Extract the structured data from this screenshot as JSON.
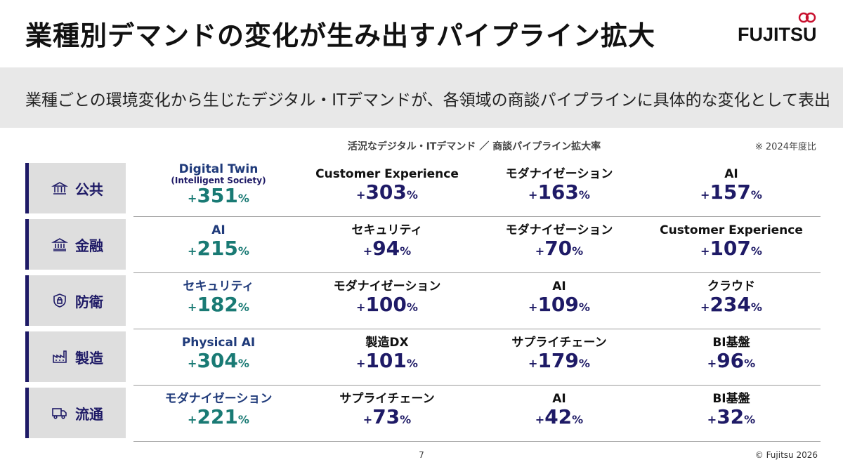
{
  "title": "業種別デマンドの変化が生み出すパイプライン拡大",
  "logo": {
    "text": "FUJITSU"
  },
  "subtitle": "業種ごとの環境変化から生じたデジタル・ITデマンドが、各領域の商談パイプラインに具体的な変化として表出",
  "table_header": "活況なデジタル・ITデマンド ／ 商談パイプライン拡大率",
  "note": "※ 2024年度比",
  "rows": [
    {
      "label": "公共",
      "icon": "government-building-icon",
      "cells": [
        {
          "name": "Digital Twin",
          "sub": "(Intelligent Society)",
          "plus": "+",
          "num": "351",
          "pct": "%"
        },
        {
          "name": "Customer Experience",
          "plus": "+",
          "num": "303",
          "pct": "%"
        },
        {
          "name": "モダナイゼーション",
          "plus": "+",
          "num": "163",
          "pct": "%"
        },
        {
          "name": "AI",
          "plus": "+",
          "num": "157",
          "pct": "%"
        }
      ]
    },
    {
      "label": "金融",
      "icon": "bank-icon",
      "cells": [
        {
          "name": "AI",
          "plus": "+",
          "num": "215",
          "pct": "%"
        },
        {
          "name": "セキュリティ",
          "plus": "+",
          "num": "94",
          "pct": "%"
        },
        {
          "name": "モダナイゼーション",
          "plus": "+",
          "num": "70",
          "pct": "%"
        },
        {
          "name": "Customer Experience",
          "plus": "+",
          "num": "107",
          "pct": "%"
        }
      ]
    },
    {
      "label": "防衛",
      "icon": "shield-lock-icon",
      "cells": [
        {
          "name": "セキュリティ",
          "plus": "+",
          "num": "182",
          "pct": "%"
        },
        {
          "name": "モダナイゼーション",
          "plus": "+",
          "num": "100",
          "pct": "%"
        },
        {
          "name": "AI",
          "plus": "+",
          "num": "109",
          "pct": "%"
        },
        {
          "name": "クラウド",
          "plus": "+",
          "num": "234",
          "pct": "%"
        }
      ]
    },
    {
      "label": "製造",
      "icon": "factory-icon",
      "cells": [
        {
          "name": "Physical AI",
          "plus": "+",
          "num": "304",
          "pct": "%"
        },
        {
          "name": "製造DX",
          "plus": "+",
          "num": "101",
          "pct": "%"
        },
        {
          "name": "サプライチェーン",
          "plus": "+",
          "num": "179",
          "pct": "%"
        },
        {
          "name": "BI基盤",
          "plus": "+",
          "num": "96",
          "pct": "%"
        }
      ]
    },
    {
      "label": "流通",
      "icon": "delivery-truck-icon",
      "cells": [
        {
          "name": "モダナイゼーション",
          "plus": "+",
          "num": "221",
          "pct": "%"
        },
        {
          "name": "サプライチェーン",
          "plus": "+",
          "num": "73",
          "pct": "%"
        },
        {
          "name": "AI",
          "plus": "+",
          "num": "42",
          "pct": "%"
        },
        {
          "name": "BI基盤",
          "plus": "+",
          "num": "32",
          "pct": "%"
        }
      ]
    }
  ],
  "colors": {
    "navy": "#1e1a66",
    "teal": "#197a74",
    "band": "#e8e8e8",
    "label_bg": "#dedede"
  },
  "page_number": "7",
  "copyright": "© Fujitsu 2026"
}
